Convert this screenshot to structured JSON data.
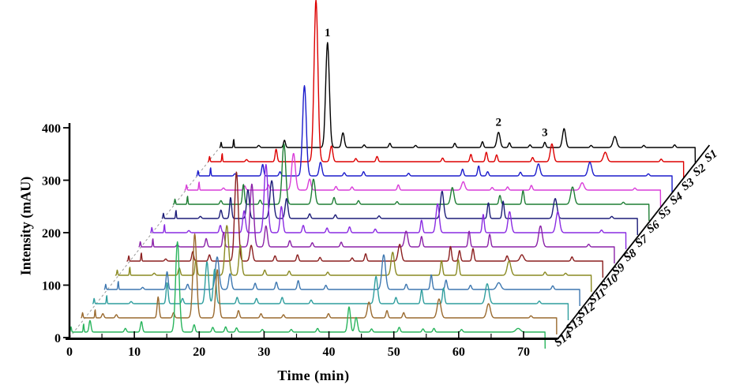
{
  "figure": {
    "background": "#ffffff"
  },
  "chart_data": {
    "type": "line",
    "subtype": "3d-waterfall-hplc-chromatograms",
    "title": "",
    "xlabel": "Time (min)",
    "ylabel": "Intensity (mAU)",
    "x_ticks": [
      0,
      10,
      20,
      30,
      40,
      50,
      60,
      70
    ],
    "x_minor_ticks": [
      5,
      15,
      25,
      35,
      45,
      55,
      65
    ],
    "x_range_min": [
      0,
      74
    ],
    "y_ticks": [
      0,
      100,
      200,
      300,
      400
    ],
    "y_range_mAU": [
      0,
      400
    ],
    "grid": false,
    "legend_position": "right-diagonal",
    "peak_annotations": [
      {
        "text": "1",
        "sample": "S1",
        "time_min": 16.8,
        "height_mAU": 200
      },
      {
        "text": "2",
        "sample": "S1",
        "time_min": 43.4,
        "height_mAU": 29
      },
      {
        "text": "3",
        "sample": "S1",
        "time_min": 50.6,
        "height_mAU": 10
      }
    ],
    "start_artifacts": [
      [
        0.25,
        10,
        0.1
      ],
      [
        2.2,
        16,
        0.09
      ]
    ],
    "series": [
      {
        "name": "S1",
        "color": "#000000",
        "peaks": [
          [
            6.1,
            4
          ],
          [
            10.1,
            14
          ],
          [
            16.8,
            200,
            0.4
          ],
          [
            19.2,
            28,
            0.3
          ],
          [
            22.5,
            5
          ],
          [
            26.5,
            8
          ],
          [
            30.5,
            4
          ],
          [
            36.6,
            8
          ],
          [
            40.9,
            11
          ],
          [
            43.4,
            29,
            0.35
          ],
          [
            45.1,
            9
          ],
          [
            48.3,
            5
          ],
          [
            50.6,
            10
          ],
          [
            53.6,
            36,
            0.35
          ],
          [
            57.8,
            4
          ],
          [
            61.5,
            21,
            0.4
          ],
          [
            66,
            4
          ],
          [
            70.8,
            5
          ]
        ]
      },
      {
        "name": "S2",
        "color": "#dd0000",
        "peaks": [
          [
            6,
            4
          ],
          [
            10.6,
            24
          ],
          [
            16.8,
            308,
            0.42
          ],
          [
            19.2,
            30,
            0.3
          ],
          [
            23,
            6
          ],
          [
            26.3,
            10
          ],
          [
            36.5,
            7
          ],
          [
            40.9,
            14
          ],
          [
            43.3,
            18
          ],
          [
            44.9,
            13
          ],
          [
            50.5,
            8
          ],
          [
            53.5,
            34,
            0.35
          ],
          [
            61.8,
            18,
            0.4
          ],
          [
            70.5,
            5
          ]
        ]
      },
      {
        "name": "S3",
        "color": "#1c1ccc",
        "peaks": [
          [
            6,
            4
          ],
          [
            10.3,
            22
          ],
          [
            13,
            8
          ],
          [
            16.8,
            172,
            0.4
          ],
          [
            19.3,
            26,
            0.3
          ],
          [
            23,
            6
          ],
          [
            26,
            8
          ],
          [
            33,
            5
          ],
          [
            41.4,
            13
          ],
          [
            43.9,
            19
          ],
          [
            45.3,
            8
          ],
          [
            50.4,
            7
          ],
          [
            53.2,
            23,
            0.35
          ],
          [
            61.2,
            26,
            0.4
          ],
          [
            70.3,
            4
          ]
        ]
      },
      {
        "name": "S4",
        "color": "#d93dd9",
        "peaks": [
          [
            6,
            4
          ],
          [
            9.3,
            8
          ],
          [
            13,
            10
          ],
          [
            16.9,
            70,
            0.4
          ],
          [
            19.4,
            21,
            0.3
          ],
          [
            23.5,
            7
          ],
          [
            26,
            6
          ],
          [
            33.2,
            10
          ],
          [
            43.3,
            16,
            0.35
          ],
          [
            47.8,
            5
          ],
          [
            50.2,
            6
          ],
          [
            53.9,
            9
          ],
          [
            61.8,
            14,
            0.4
          ],
          [
            70,
            4
          ]
        ]
      },
      {
        "name": "S5",
        "color": "#1e7e34",
        "peaks": [
          [
            7.4,
            7
          ],
          [
            10.9,
            38
          ],
          [
            13.5,
            8
          ],
          [
            17.2,
            115,
            0.4
          ],
          [
            21.8,
            48,
            0.35
          ],
          [
            25,
            13
          ],
          [
            28.8,
            7
          ],
          [
            34.8,
            5
          ],
          [
            43.4,
            32,
            0.35
          ],
          [
            50.8,
            17
          ],
          [
            54.4,
            26
          ],
          [
            62.1,
            33,
            0.4
          ],
          [
            70,
            4
          ]
        ]
      },
      {
        "name": "S6",
        "color": "#1c1c78",
        "peaks": [
          [
            6,
            4
          ],
          [
            9.2,
            16
          ],
          [
            10.7,
            40
          ],
          [
            13.4,
            55,
            0.3
          ],
          [
            17.1,
            72,
            0.4
          ],
          [
            19.4,
            38,
            0.3
          ],
          [
            23,
            9
          ],
          [
            27,
            7
          ],
          [
            33.8,
            5
          ],
          [
            43.6,
            52,
            0.35
          ],
          [
            50.8,
            30
          ],
          [
            53.1,
            33
          ],
          [
            61.2,
            38,
            0.4
          ],
          [
            70,
            4
          ]
        ]
      },
      {
        "name": "S7",
        "color": "#8a2be2",
        "peaks": [
          [
            6,
            4
          ],
          [
            10.9,
            14
          ],
          [
            14.6,
            42,
            0.3
          ],
          [
            18,
            130,
            0.4
          ],
          [
            20.4,
            50,
            0.3
          ],
          [
            23.8,
            14
          ],
          [
            27.5,
            9
          ],
          [
            31,
            11
          ],
          [
            35,
            7
          ],
          [
            42.2,
            24
          ],
          [
            44.7,
            55,
            0.35
          ],
          [
            51.8,
            35
          ],
          [
            55.9,
            40,
            0.35
          ],
          [
            63.4,
            40,
            0.4
          ],
          [
            70.2,
            5
          ]
        ]
      },
      {
        "name": "S8",
        "color": "#8b22a8",
        "peaks": [
          [
            6,
            4
          ],
          [
            10.5,
            16
          ],
          [
            13.2,
            28
          ],
          [
            17.6,
            120,
            0.4
          ],
          [
            19.8,
            40,
            0.3
          ],
          [
            23.5,
            12
          ],
          [
            27,
            8
          ],
          [
            31.5,
            9
          ],
          [
            41.6,
            30,
            0.35
          ],
          [
            44,
            20
          ],
          [
            51.4,
            30
          ],
          [
            54.6,
            24
          ],
          [
            62.5,
            40,
            0.4
          ],
          [
            70,
            5
          ]
        ]
      },
      {
        "name": "S9",
        "color": "#8b1f1f",
        "peaks": [
          [
            6,
            4
          ],
          [
            10.2,
            18
          ],
          [
            12.8,
            12
          ],
          [
            17,
            170,
            0.4
          ],
          [
            19.3,
            30,
            0.3
          ],
          [
            23,
            10
          ],
          [
            26.5,
            12
          ],
          [
            30,
            7
          ],
          [
            35,
            6
          ],
          [
            37.1,
            14
          ],
          [
            42.4,
            32,
            0.35
          ],
          [
            50.3,
            28
          ],
          [
            51.7,
            20
          ],
          [
            53.8,
            24
          ],
          [
            59.1,
            10
          ],
          [
            61.4,
            12,
            0.4
          ],
          [
            69.2,
            8
          ]
        ]
      },
      {
        "name": "S10",
        "color": "#8a8a22",
        "peaks": [
          [
            6,
            4
          ],
          [
            9.9,
            14
          ],
          [
            12.5,
            30
          ],
          [
            17.3,
            95,
            0.4
          ],
          [
            19.4,
            58,
            0.3
          ],
          [
            23.2,
            10
          ],
          [
            27,
            8
          ],
          [
            33,
            6
          ],
          [
            43.1,
            44,
            0.35
          ],
          [
            50.7,
            28
          ],
          [
            53.3,
            30
          ],
          [
            61.2,
            27,
            0.4
          ],
          [
            66.8,
            6
          ],
          [
            70,
            4
          ]
        ]
      },
      {
        "name": "S11",
        "color": "#3d77b0",
        "peaks": [
          [
            6,
            4
          ],
          [
            9.8,
            34
          ],
          [
            13,
            10
          ],
          [
            17.6,
            62,
            0.4
          ],
          [
            19.6,
            30,
            0.3
          ],
          [
            23.5,
            12
          ],
          [
            26.8,
            14
          ],
          [
            30.2,
            17
          ],
          [
            34.5,
            8
          ],
          [
            43.5,
            66,
            0.4
          ],
          [
            47,
            10
          ],
          [
            50.9,
            28
          ],
          [
            53.2,
            18
          ],
          [
            57,
            8
          ],
          [
            61.4,
            13,
            0.45
          ],
          [
            69.8,
            7
          ]
        ]
      },
      {
        "name": "S12",
        "color": "#2f9e9e",
        "peaks": [
          [
            6,
            4
          ],
          [
            11.6,
            40
          ],
          [
            14,
            10
          ],
          [
            17.8,
            80,
            0.35
          ],
          [
            19,
            66,
            0.3
          ],
          [
            22.5,
            12
          ],
          [
            25.5,
            10
          ],
          [
            29.5,
            12
          ],
          [
            34,
            7
          ],
          [
            44.1,
            52,
            0.35
          ],
          [
            47.2,
            12
          ],
          [
            51.2,
            26
          ],
          [
            54.6,
            30
          ],
          [
            61.4,
            38,
            0.4
          ],
          [
            69.5,
            5
          ]
        ]
      },
      {
        "name": "S13",
        "color": "#9a6a2f",
        "peaks": [
          [
            3.4,
            8
          ],
          [
            5.5,
            6
          ],
          [
            12,
            40
          ],
          [
            14.4,
            10
          ],
          [
            17.7,
            160,
            0.4
          ],
          [
            21.2,
            92,
            0.35
          ],
          [
            24.5,
            14
          ],
          [
            28,
            8
          ],
          [
            31.5,
            6
          ],
          [
            38.5,
            8
          ],
          [
            44.8,
            30,
            0.35
          ],
          [
            47.6,
            14
          ],
          [
            50.2,
            10
          ],
          [
            55.7,
            36,
            0.4
          ],
          [
            63.4,
            27,
            0.4
          ],
          [
            70,
            4
          ]
        ]
      },
      {
        "name": "S14",
        "color": "#28b45c",
        "peaks": [
          [
            3.2,
            22
          ],
          [
            8.7,
            7
          ],
          [
            11.2,
            20
          ],
          [
            16.8,
            172,
            0.4
          ],
          [
            19.4,
            14
          ],
          [
            22.3,
            9
          ],
          [
            24.3,
            10
          ],
          [
            26,
            8
          ],
          [
            30,
            5
          ],
          [
            34.5,
            5
          ],
          [
            38.6,
            7
          ],
          [
            43.5,
            48,
            0.3
          ],
          [
            44.6,
            28,
            0.3
          ],
          [
            47,
            6
          ],
          [
            51.3,
            9
          ],
          [
            55,
            6
          ],
          [
            56.7,
            7
          ],
          [
            61,
            5
          ],
          [
            69.8,
            7,
            0.5
          ]
        ]
      }
    ]
  }
}
